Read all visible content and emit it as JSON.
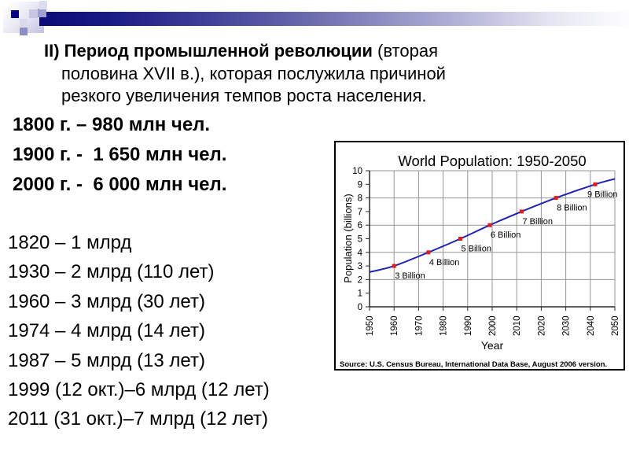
{
  "theme": {
    "bar_dark": "#0a0a78",
    "bar_light": "#fdfdff",
    "square_navy": "#050585",
    "square_lavender": "#c6c6e4",
    "text_color": "#000000"
  },
  "heading": {
    "bold": "II) Период промышленной революции",
    "rest": " (вторая половина XVII в.), которая послужила причиной резкого увеличения темпов роста населения."
  },
  "population_history": {
    "items": [
      "1800 г. – 980 млн чел.",
      "1900 г. -  1 650 млн чел.",
      "2000 г. -  6 000 млн чел."
    ]
  },
  "billion_milestones": {
    "items": [
      "1820 – 1 млрд",
      "1930 – 2 млрд (110 лет)",
      "1960 – 3 млрд (30 лет)",
      "1974 – 4 млрд (14 лет)",
      "1987 – 5 млрд (13 лет)",
      "1999 (12 окт.)–6 млрд (12 лет)",
      "2011 (31 окт.)–7 млрд (12 лет)"
    ]
  },
  "chart_data": {
    "type": "line",
    "title": "World Population: 1950-2050",
    "xlabel": "Year",
    "ylabel": "Population (billions)",
    "source": "Source: U.S. Census Bureau, International Data Base, August 2006 version.",
    "xlim": [
      1950,
      2050
    ],
    "ylim": [
      0,
      10
    ],
    "x_ticks": [
      1950,
      1960,
      1970,
      1980,
      1990,
      2000,
      2010,
      2020,
      2030,
      2040,
      2050
    ],
    "y_ticks": [
      0,
      1,
      2,
      3,
      4,
      5,
      6,
      7,
      8,
      9,
      10
    ],
    "grid": {
      "h_lines": [
        2,
        4,
        6,
        8,
        10
      ],
      "v_lines_at_decades": true
    },
    "legend": "none",
    "series": [
      {
        "name": "World population",
        "x": [
          1950,
          1960,
          1974,
          1987,
          1999,
          2012,
          2026,
          2042,
          2050
        ],
        "y": [
          2.55,
          3,
          4,
          5,
          6,
          7,
          8,
          9,
          9.4
        ]
      }
    ],
    "milestone_markers": [
      {
        "year": 1960,
        "value": 3,
        "label": "3 Billion"
      },
      {
        "year": 1974,
        "value": 4,
        "label": "4 Billion"
      },
      {
        "year": 1987,
        "value": 5,
        "label": "5 Billion"
      },
      {
        "year": 1999,
        "value": 6,
        "label": "6 Billion"
      },
      {
        "year": 2012,
        "value": 7,
        "label": "7 Billion"
      },
      {
        "year": 2026,
        "value": 8,
        "label": "8 Billion"
      },
      {
        "year": 2042,
        "value": 9,
        "label": "9 Billion"
      }
    ],
    "colors": {
      "line": "#2121b2",
      "marker": "#e31b1b",
      "grid": "#969696",
      "axis": "#2b2b2b",
      "text": "#000000",
      "border": "#000000"
    }
  }
}
